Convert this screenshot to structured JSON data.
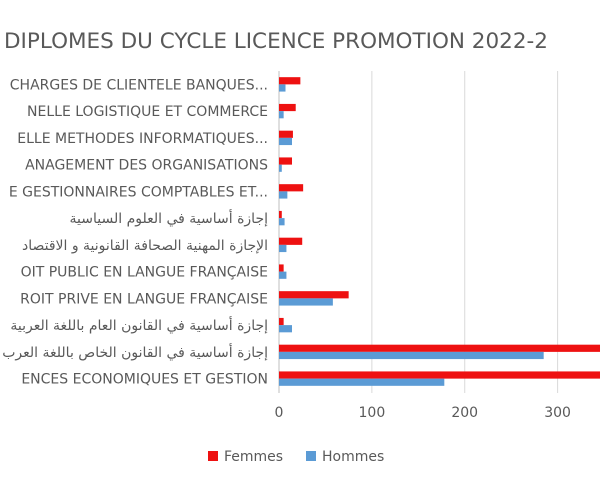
{
  "chart_data": {
    "type": "bar",
    "orientation": "horizontal",
    "title": "DIPLOMES DU CYCLE LICENCE PROMOTION 2022-2",
    "categories": [
      "CHARGES DE CLIENTELE BANQUES...",
      "NELLE LOGISTIQUE ET COMMERCE",
      "ELLE METHODES INFORMATIQUES...",
      "ANAGEMENT DES ORGANISATIONS",
      "E GESTIONNAIRES COMPTABLES ET...",
      "إجازة أساسية في العلوم السياسية",
      "الإجازة المهنية الصحافة القانونية و الاقتصاد",
      "OIT PUBLIC EN LANGUE FRANÇAISE",
      "ROIT PRIVE EN LANGUE FRANÇAISE",
      "إجازة أساسية في القانون العام باللغة العربية",
      "إجازة أساسية في القانون الخاص باللغة العرب",
      "ENCES ECONOMIQUES ET GESTION"
    ],
    "series": [
      {
        "name": "Femmes",
        "color": "#ee1111",
        "values": [
          23,
          18,
          15,
          14,
          26,
          3,
          25,
          5,
          75,
          5,
          355,
          360
        ]
      },
      {
        "name": "Hommes",
        "color": "#5b9bd5",
        "values": [
          7,
          5,
          14,
          3,
          9,
          6,
          8,
          8,
          58,
          14,
          285,
          178
        ]
      }
    ],
    "xticks": [
      "0",
      "100",
      "200",
      "300"
    ],
    "xlim": [
      0,
      350
    ],
    "grid": true,
    "legend": "bottom"
  }
}
